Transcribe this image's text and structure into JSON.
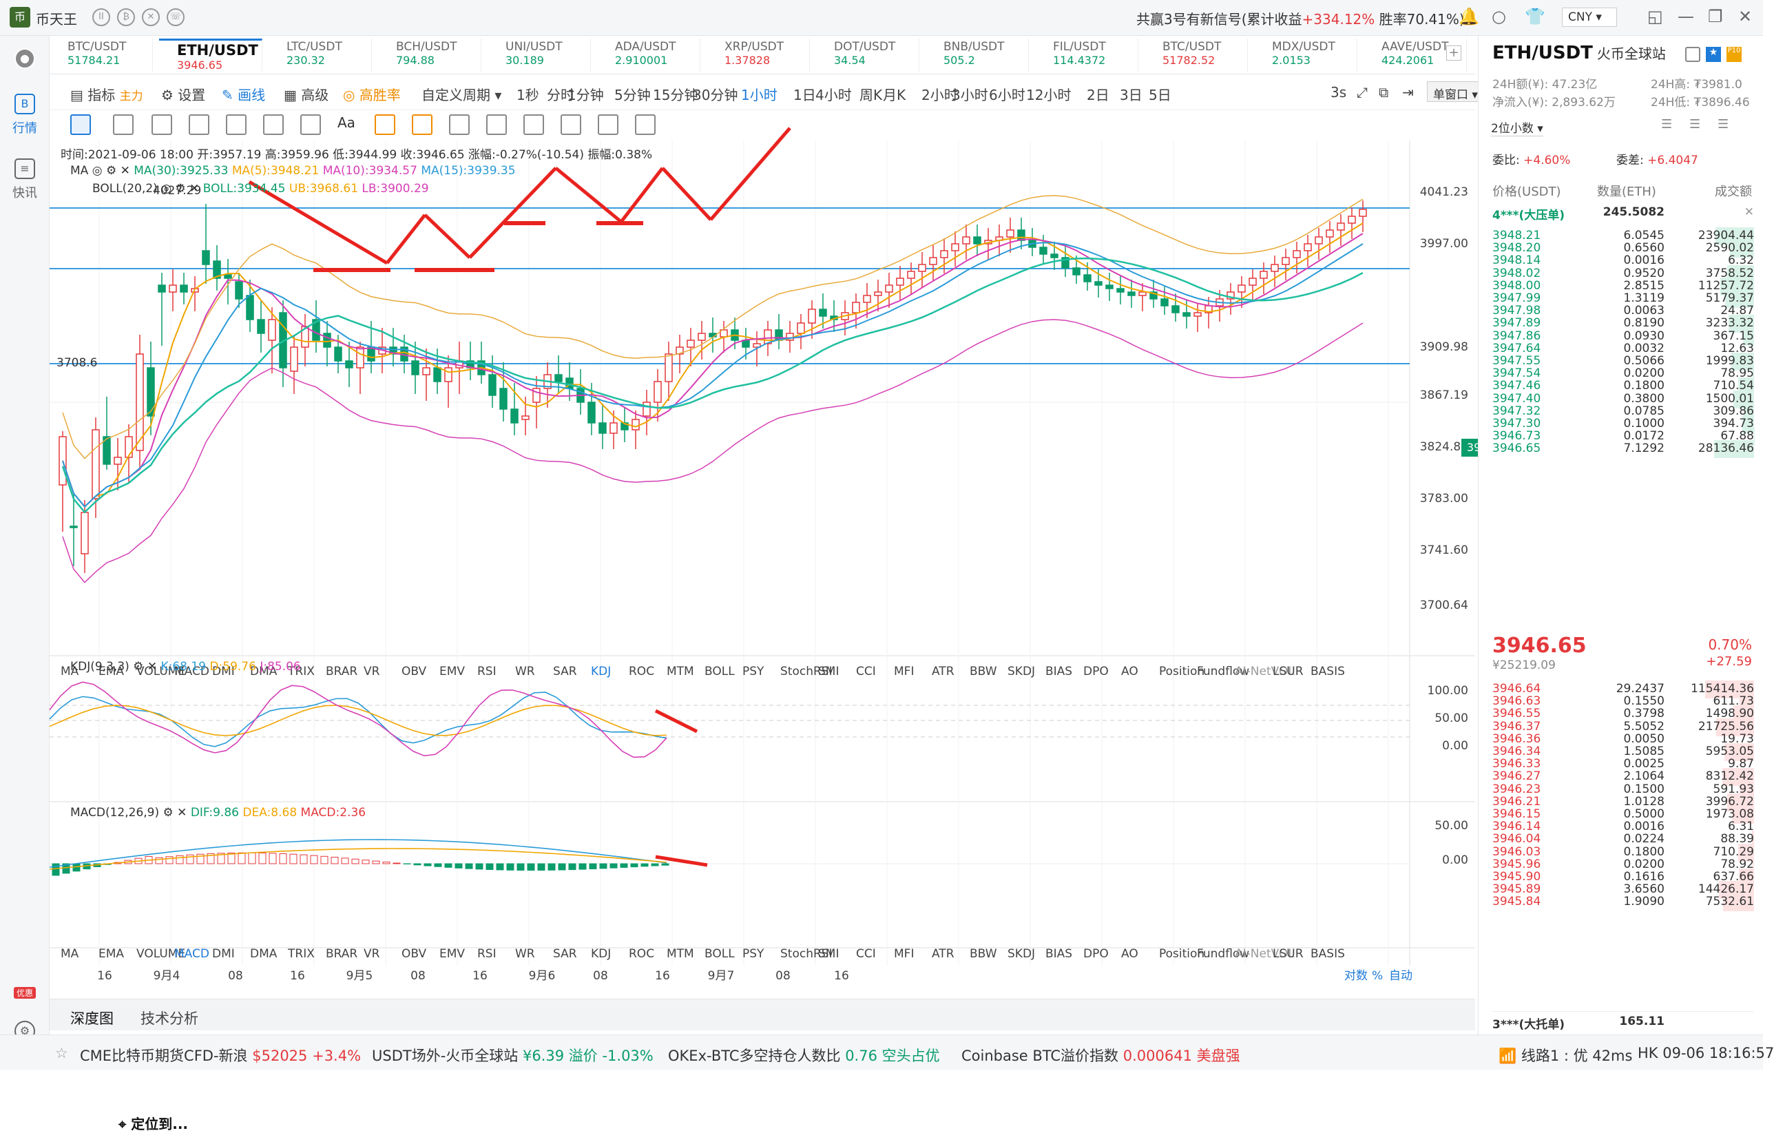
{
  "app": {
    "name": "币天王",
    "notice_prefix": "共赢3号有新信号(累计收益",
    "notice_gain": "+334.12%",
    "notice_suffix": "胜率70.41%)",
    "currency": "CNY"
  },
  "sidebar": {
    "market": "行情",
    "news": "快讯",
    "promo": "优惠"
  },
  "tabs": [
    {
      "name": "BTC/USDT",
      "price": "51784.21",
      "dir": "up"
    },
    {
      "name": "ETH/USDT",
      "price": "3946.65",
      "dir": "dn"
    },
    {
      "name": "LTC/USDT",
      "price": "230.32",
      "dir": "up"
    },
    {
      "name": "BCH/USDT",
      "price": "794.88",
      "dir": "up"
    },
    {
      "name": "UNI/USDT",
      "price": "30.189",
      "dir": "up"
    },
    {
      "name": "ADA/USDT",
      "price": "2.910001",
      "dir": "up"
    },
    {
      "name": "XRP/USDT",
      "price": "1.37828",
      "dir": "dn"
    },
    {
      "name": "DOT/USDT",
      "price": "34.54",
      "dir": "up"
    },
    {
      "name": "BNB/USDT",
      "price": "505.2",
      "dir": "up"
    },
    {
      "name": "FIL/USDT",
      "price": "114.4372",
      "dir": "up"
    },
    {
      "name": "BTC/USDT",
      "price": "51782.52",
      "dir": "dn"
    },
    {
      "name": "MDX/USDT",
      "price": "2.0153",
      "dir": "up"
    },
    {
      "name": "AAVE/USDT",
      "price": "424.2061",
      "dir": "up"
    }
  ],
  "toolbar": {
    "indicator": "指标",
    "main": "主力",
    "settings": "设置",
    "draw": "画线",
    "advanced": "高级",
    "winrate": "高胜率",
    "custom": "自定义周期",
    "periods": [
      "1秒",
      "分时",
      "1分钟",
      "5分钟",
      "15分钟",
      "30分钟",
      "1小时",
      "1日",
      "4小时",
      "周K",
      "月K",
      "2小时",
      "3小时",
      "6小时",
      "12小时",
      "2日",
      "3日",
      "5日"
    ],
    "active_period": "1小时",
    "interval": "3s",
    "window": "单窗口"
  },
  "chart_info": {
    "ohlc": "时间:2021-09-06 18:00  开:3957.19  高:3959.96  低:3944.99  收:3946.65  涨幅:-0.27%(-10.54)  振幅:0.38%",
    "ma_label": "MA",
    "ma30": "MA(30):3925.33",
    "ma5": "MA(5):3948.21",
    "ma10": "MA(10):3934.57",
    "ma15": "MA(15):3939.35",
    "boll_label": "BOLL(20,2)",
    "boll": "BOLL:3934.45",
    "ub": "UB:3968.61",
    "lb": "LB:3900.29",
    "kdj_label": "KDJ(9,3,3)",
    "kdj_k": "K:68.19",
    "kdj_d": "D:59.76",
    "kdj_j": "J:85.06",
    "macd_label": "MACD(12,26,9)",
    "dif": "DIF:9.86",
    "dea": "DEA:8.68",
    "macd": "MACD:2.36",
    "high_mark": "4027.29",
    "low_mark": "3708.6",
    "price_axis": [
      "4041.23",
      "3997.00",
      "3909.98",
      "3867.19",
      "3824.86",
      "3783.00",
      "3741.60",
      "3700.64"
    ],
    "current_price": "3946.65",
    "kdj_axis": [
      "100.00",
      "50.00",
      "0.00"
    ],
    "macd_axis": [
      "50.00",
      "0.00"
    ],
    "time_axis": [
      "16",
      "9月4",
      "08",
      "16",
      "9月5",
      "08",
      "16",
      "9月6",
      "08",
      "16",
      "9月7",
      "08",
      "16"
    ],
    "scale_modes": [
      "对数",
      "%",
      "自动"
    ],
    "locator": "定位到..."
  },
  "indicators": [
    "MA",
    "EMA",
    "VOLUME",
    "MACD",
    "DMI",
    "DMA",
    "TRIX",
    "BRAR",
    "VR",
    "OBV",
    "EMV",
    "RSI",
    "WR",
    "SAR",
    "KDJ",
    "ROC",
    "MTM",
    "BOLL",
    "PSY",
    "StochRSI",
    "SMI",
    "CCI",
    "MFI",
    "ATR",
    "BBW",
    "SKDJ",
    "BIAS",
    "DPO",
    "AO",
    "Position",
    "Fundflow",
    "AI-NetVOL",
    "LSUR",
    "BASIS"
  ],
  "bottom_tabs": [
    "深度图",
    "技术分析"
  ],
  "orderbook": {
    "symbol": "ETH/USDT",
    "exchange": "火币全球站",
    "vol24": "24H额(¥): 47.23亿",
    "high24": "24H高: ₮3981.0",
    "inflow": "净流入(¥): 2,893.62万",
    "low24": "24H低: ₮3896.46",
    "decimals": "2位小数",
    "bid_ratio_label": "委比:",
    "bid_ratio": "+4.60%",
    "bid_diff_label": "委差:",
    "bid_diff": "+6.4047",
    "col_price": "价格(USDT)",
    "col_qty": "数量(ETH)",
    "col_total": "成交额",
    "big_ask_label": "4***(大压单)",
    "big_ask_qty": "245.5082",
    "asks": [
      [
        "3948.21",
        "6.0545",
        "23904.44"
      ],
      [
        "3948.20",
        "0.6560",
        "2590.02"
      ],
      [
        "3948.14",
        "0.0016",
        "6.32"
      ],
      [
        "3948.02",
        "0.9520",
        "3758.52"
      ],
      [
        "3948.00",
        "2.8515",
        "11257.72"
      ],
      [
        "3947.99",
        "1.3119",
        "5179.37"
      ],
      [
        "3947.98",
        "0.0063",
        "24.87"
      ],
      [
        "3947.89",
        "0.8190",
        "3233.32"
      ],
      [
        "3947.86",
        "0.0930",
        "367.15"
      ],
      [
        "3947.64",
        "0.0032",
        "12.63"
      ],
      [
        "3947.55",
        "0.5066",
        "1999.83"
      ],
      [
        "3947.54",
        "0.0200",
        "78.95"
      ],
      [
        "3947.46",
        "0.1800",
        "710.54"
      ],
      [
        "3947.40",
        "0.3800",
        "1500.01"
      ],
      [
        "3947.32",
        "0.0785",
        "309.86"
      ],
      [
        "3947.30",
        "0.1000",
        "394.73"
      ],
      [
        "3946.73",
        "0.0172",
        "67.88"
      ],
      [
        "3946.65",
        "7.1292",
        "28136.46"
      ]
    ],
    "last_price": "3946.65",
    "last_cny": "¥25219.09",
    "last_pct": "0.70%",
    "last_chg": "+27.59",
    "bids": [
      [
        "3946.64",
        "29.2437",
        "115414.36"
      ],
      [
        "3946.63",
        "0.1550",
        "611.73"
      ],
      [
        "3946.55",
        "0.3798",
        "1498.90"
      ],
      [
        "3946.37",
        "5.5052",
        "21725.56"
      ],
      [
        "3946.36",
        "0.0050",
        "19.73"
      ],
      [
        "3946.34",
        "1.5085",
        "5953.05"
      ],
      [
        "3946.33",
        "0.0025",
        "9.87"
      ],
      [
        "3946.27",
        "2.1064",
        "8312.42"
      ],
      [
        "3946.23",
        "0.1500",
        "591.93"
      ],
      [
        "3946.21",
        "1.0128",
        "3996.72"
      ],
      [
        "3946.15",
        "0.5000",
        "1973.08"
      ],
      [
        "3946.14",
        "0.0016",
        "6.31"
      ],
      [
        "3946.04",
        "0.0224",
        "88.39"
      ],
      [
        "3946.03",
        "0.1800",
        "710.29"
      ],
      [
        "3945.96",
        "0.0200",
        "78.92"
      ],
      [
        "3945.90",
        "0.1616",
        "637.66"
      ],
      [
        "3945.89",
        "3.6560",
        "14426.17"
      ],
      [
        "3945.84",
        "1.9090",
        "7532.61"
      ]
    ],
    "big_bid_label": "3***(大托单)",
    "big_bid_qty": "165.11"
  },
  "ticker": [
    {
      "label": "CME比特币期货CFD-新浪",
      "value": "$52025",
      "chg": "+3.4%"
    },
    {
      "label": "USDT场外-火币全球站",
      "value": "¥6.39",
      "chg": "溢价 -1.03%"
    },
    {
      "label": "OKEx-BTC多空持仓人数比",
      "value": "0.76",
      "chg": "空头占优"
    },
    {
      "label": "Coinbase BTC溢价指数",
      "value": "0.000641",
      "chg": "美盘强"
    }
  ],
  "status": {
    "line": "线路1 : 优 42ms",
    "time": "HK 09-06 18:16:57"
  },
  "colors": {
    "up": "#e4393c",
    "down": "#0a9c6b",
    "accent": "#1e7bd7",
    "arrow": "#e8231f"
  }
}
